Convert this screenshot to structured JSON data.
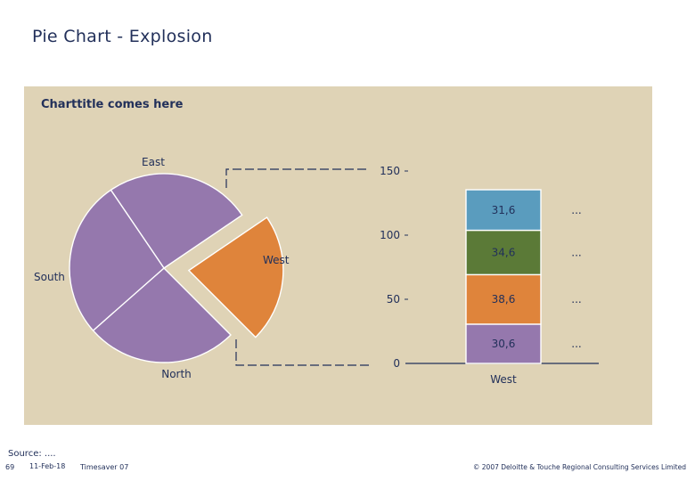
{
  "slide_title": "Pie Chart - Explosion",
  "footer": {
    "source": "Source: ....",
    "page": "69",
    "date": "11-Feb-18",
    "tool": "Timesaver 07",
    "copyright": "© 2007 Deloitte & Touche Regional Consulting Services Limited"
  },
  "colors": {
    "panel": "#dfd3b6",
    "purple": "#9578ad",
    "orange": "#df843b",
    "green": "#5b7a37",
    "blue": "#5a9cbe",
    "axis": "#22305a"
  },
  "chart_data": [
    {
      "type": "pie",
      "title": "Charttitle comes here",
      "categories": [
        "East",
        "West",
        "North",
        "South"
      ],
      "values": [
        25,
        22,
        26,
        27
      ],
      "exploded": "West",
      "colors": [
        "#9578ad",
        "#df843b",
        "#9578ad",
        "#9578ad"
      ]
    },
    {
      "type": "bar",
      "stacked": true,
      "categories": [
        "West"
      ],
      "series": [
        {
          "values": [
            30.6
          ],
          "label": "30,6",
          "color": "#9578ad",
          "annotation": "..."
        },
        {
          "values": [
            38.6
          ],
          "label": "38,6",
          "color": "#df843b",
          "annotation": "..."
        },
        {
          "values": [
            34.6
          ],
          "label": "34,6",
          "color": "#5b7a37",
          "annotation": "..."
        },
        {
          "values": [
            31.6
          ],
          "label": "31,6",
          "color": "#5a9cbe",
          "annotation": "..."
        }
      ],
      "yticks": [
        0,
        50,
        100,
        150
      ],
      "ylim": [
        0,
        150
      ]
    }
  ]
}
